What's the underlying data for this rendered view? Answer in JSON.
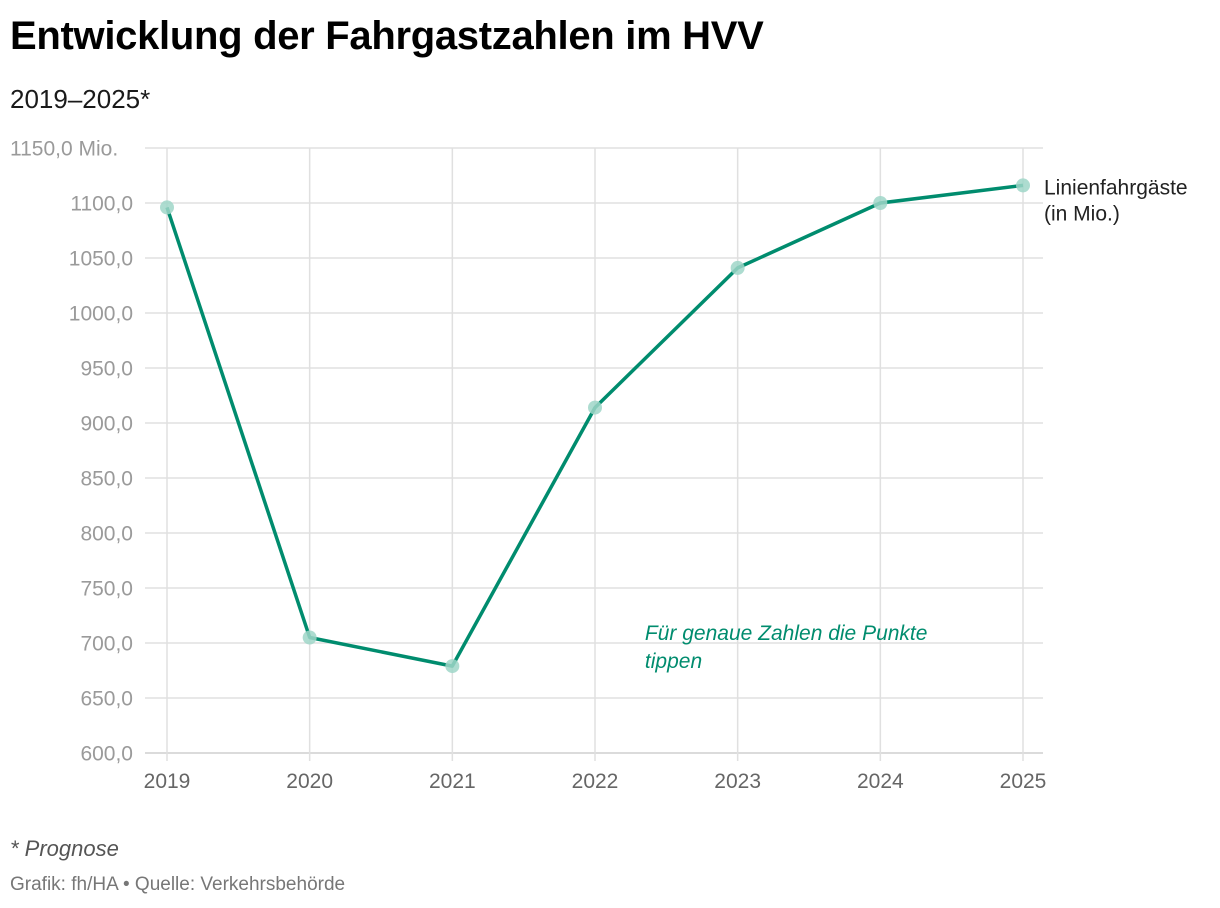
{
  "header": {
    "title": "Entwicklung der Fahrgastzahlen im HVV",
    "subtitle": "2019–2025*"
  },
  "footer": {
    "footnote": "* Prognose",
    "credit": "Grafik: fh/HA • Quelle: Verkehrsbehörde"
  },
  "colors": {
    "line": "#008c6e",
    "point": "#9fd6c8",
    "grid": "#e0e0e0"
  },
  "chart_data": {
    "type": "line",
    "title": "Entwicklung der Fahrgastzahlen im HVV",
    "subtitle": "2019–2025*",
    "categories": [
      "2019",
      "2020",
      "2021",
      "2022",
      "2023",
      "2024",
      "2025"
    ],
    "series": [
      {
        "name": "Linienfahrgäste (in Mio.)",
        "label_lines": [
          "Linienfahrgäste",
          "(in Mio.)"
        ],
        "values": [
          1096,
          705,
          679,
          914,
          1041,
          1100,
          1116
        ]
      }
    ],
    "ylim": [
      600,
      1150
    ],
    "yticks": [
      {
        "value": 1150,
        "label": "1150,0 Mio."
      },
      {
        "value": 1100,
        "label": "1100,0"
      },
      {
        "value": 1050,
        "label": "1050,0"
      },
      {
        "value": 1000,
        "label": "1000,0"
      },
      {
        "value": 950,
        "label": "950,0"
      },
      {
        "value": 900,
        "label": "900,0"
      },
      {
        "value": 850,
        "label": "850,0"
      },
      {
        "value": 800,
        "label": "800,0"
      },
      {
        "value": 750,
        "label": "750,0"
      },
      {
        "value": 700,
        "label": "700,0"
      },
      {
        "value": 650,
        "label": "650,0"
      },
      {
        "value": 600,
        "label": "600,0"
      }
    ],
    "annotation": {
      "lines": [
        "Für genaue Zahlen die Punkte",
        "tippen"
      ],
      "x": "2022.35",
      "y": 700
    },
    "grid": true,
    "xlabel": "",
    "ylabel": ""
  }
}
